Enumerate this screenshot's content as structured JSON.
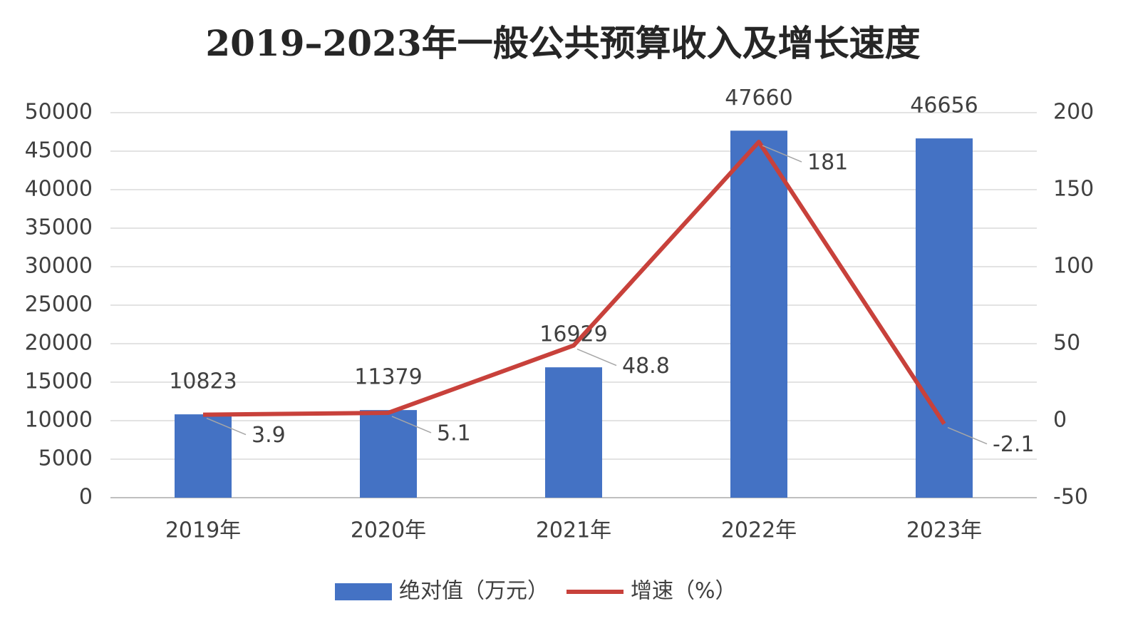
{
  "chart_data": {
    "type": "bar",
    "title": "2019–2023年一般公共预算收入及增长速度",
    "categories": [
      "2019年",
      "2020年",
      "2021年",
      "2022年",
      "2023年"
    ],
    "series": [
      {
        "name": "绝对值（万元）",
        "type": "bar",
        "color": "#4472c4",
        "values": [
          10823,
          11379,
          16929,
          47660,
          46656
        ]
      },
      {
        "name": "增速（%）",
        "type": "line",
        "color": "#c8413b",
        "axis": "y2",
        "values": [
          3.9,
          5.1,
          48.8,
          181,
          -2.1
        ]
      }
    ],
    "ylim": [
      0,
      50000
    ],
    "yticks": [
      0,
      5000,
      10000,
      15000,
      20000,
      25000,
      30000,
      35000,
      40000,
      45000,
      50000
    ],
    "y2lim": [
      -50,
      200
    ],
    "y2ticks": [
      -50,
      0,
      50,
      100,
      150,
      200
    ],
    "grid": true,
    "legend": "bottom"
  }
}
